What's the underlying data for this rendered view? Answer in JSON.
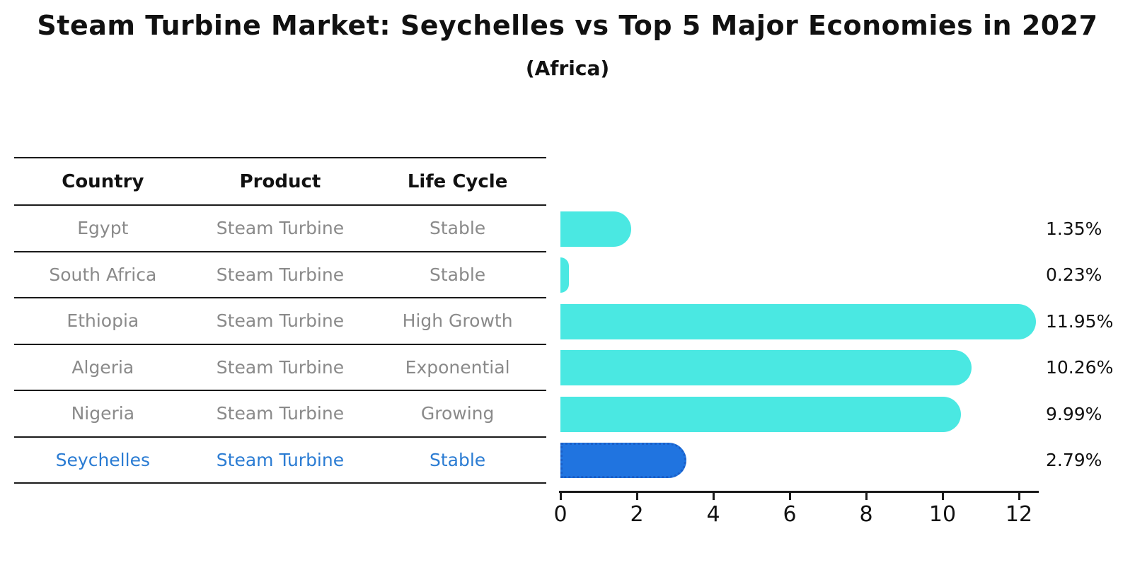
{
  "title": "Steam Turbine Market: Seychelles vs Top 5 Major Economies in 2027",
  "subtitle": "(Africa)",
  "table": {
    "columns": [
      "Country",
      "Product",
      "Life Cycle"
    ],
    "rows": [
      {
        "country": "Egypt",
        "product": "Steam Turbine",
        "life_cycle": "Stable",
        "highlight": false
      },
      {
        "country": "South Africa",
        "product": "Steam Turbine",
        "life_cycle": "Stable",
        "highlight": false
      },
      {
        "country": "Ethiopia",
        "product": "Steam Turbine",
        "life_cycle": "High Growth",
        "highlight": false
      },
      {
        "country": "Algeria",
        "product": "Steam Turbine",
        "life_cycle": "Exponential",
        "highlight": false
      },
      {
        "country": "Nigeria",
        "product": "Steam Turbine",
        "life_cycle": "Growing",
        "highlight": false
      },
      {
        "country": "Seychelles",
        "product": "Steam Turbine",
        "life_cycle": "Stable",
        "highlight": true
      }
    ]
  },
  "chart_data": {
    "type": "bar",
    "orientation": "horizontal",
    "title": "Steam Turbine Market: Seychelles vs Top 5 Major Economies in 2027",
    "subtitle": "(Africa)",
    "categories": [
      "Egypt",
      "South Africa",
      "Ethiopia",
      "Algeria",
      "Nigeria",
      "Seychelles"
    ],
    "values": [
      1.35,
      0.23,
      11.95,
      10.26,
      9.99,
      2.79
    ],
    "value_labels": [
      "1.35%",
      "0.23%",
      "11.95%",
      "10.26%",
      "9.99%",
      "2.79%"
    ],
    "unit": "%",
    "x_ticks": [
      0,
      2,
      4,
      6,
      8,
      10,
      12
    ],
    "xlim": [
      0,
      12.55
    ],
    "grid": false,
    "legend": false,
    "highlight_index": 5,
    "highlight_category": "Seychelles"
  },
  "colors": {
    "bar": "#4ae8e2",
    "highlight_bar": "#2074e0",
    "highlight_border": "#1a5fc8",
    "highlight_text": "#2b7cd3",
    "text": "#111111",
    "muted_text": "#8a8a8a",
    "line": "#1a1a1a",
    "background": "#ffffff"
  }
}
